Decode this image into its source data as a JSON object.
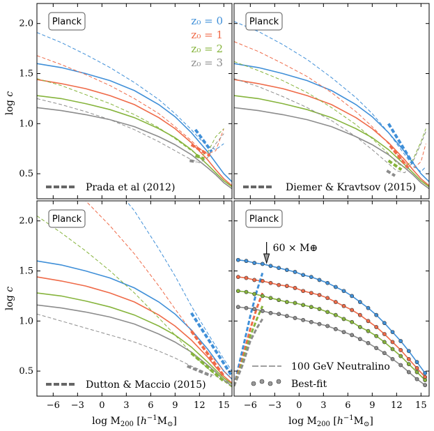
{
  "chart_data": {
    "type": "line",
    "layout": "2x2 panels, shared axes",
    "xlabel": "log M$_{200}$ [$h^{-1}$M$_\\odot$]",
    "ylabel": "log c",
    "xlim": [
      -8,
      16
    ],
    "ylim": [
      0.25,
      2.2
    ],
    "xticks": [
      -6,
      -3,
      0,
      3,
      6,
      9,
      12,
      15
    ],
    "yticks": [
      0.5,
      1.0,
      1.5,
      2.0
    ],
    "colors": {
      "z0": "#3f8fd8",
      "z1": "#ef6a48",
      "z2": "#86b43c",
      "z3": "#8c8c8c"
    },
    "redshift_labels": [
      "z₀ = 0",
      "z₀ = 1",
      "z₀ = 2",
      "z₀ = 3"
    ],
    "solid_curves": {
      "x": [
        -8,
        -5,
        -2,
        1,
        4,
        7,
        9,
        11,
        13,
        14,
        15,
        16
      ],
      "z0": [
        1.6,
        1.56,
        1.5,
        1.43,
        1.33,
        1.19,
        1.07,
        0.91,
        0.72,
        0.61,
        0.5,
        0.42
      ],
      "z1": [
        1.44,
        1.4,
        1.35,
        1.28,
        1.19,
        1.06,
        0.95,
        0.81,
        0.64,
        0.54,
        0.45,
        0.38
      ],
      "z2": [
        1.28,
        1.25,
        1.2,
        1.14,
        1.06,
        0.95,
        0.86,
        0.74,
        0.59,
        0.51,
        0.43,
        0.37
      ],
      "z3": [
        1.16,
        1.13,
        1.09,
        1.04,
        0.97,
        0.87,
        0.79,
        0.69,
        0.56,
        0.49,
        0.41,
        0.35
      ]
    },
    "panels": [
      {
        "box_label": "Planck",
        "legend_label": "Prada et al (2012)",
        "show_redshift_legend": true,
        "dashed": {
          "x": [
            -8,
            -5,
            -2,
            1,
            4,
            7,
            9,
            11,
            12,
            13,
            14,
            15
          ],
          "z0": [
            1.91,
            1.81,
            1.69,
            1.56,
            1.41,
            1.24,
            1.1,
            0.94,
            0.85,
            0.78,
            0.74,
            0.8
          ],
          "z1": [
            1.68,
            1.59,
            1.49,
            1.38,
            1.25,
            1.1,
            0.97,
            0.83,
            0.75,
            0.7,
            0.73,
            0.95
          ],
          "z2": [
            1.45,
            1.38,
            1.29,
            1.2,
            1.09,
            0.96,
            0.85,
            0.73,
            0.68,
            0.71,
            0.87,
            0.95
          ],
          "z3": [
            1.25,
            1.19,
            1.12,
            1.04,
            0.94,
            0.82,
            0.73,
            0.64,
            0.61,
            0.66,
            0.8,
            0.9
          ]
        },
        "thick_dashed": {
          "z0": {
            "x": [
              11.5,
              13.5
            ],
            "y": [
              0.94,
              0.72
            ]
          },
          "z1": {
            "x": [
              11.0,
              13.3
            ],
            "y": [
              0.79,
              0.68
            ]
          },
          "z2": {
            "x": [
              11.5,
              12.6
            ],
            "y": [
              0.68,
              0.65
            ]
          },
          "z3": {
            "x": [
              10.8,
              11.6
            ],
            "y": [
              0.63,
              0.62
            ]
          }
        }
      },
      {
        "box_label": "Planck",
        "legend_label": "Diemer & Kravtsov (2015)",
        "show_redshift_legend": false,
        "dashed": {
          "x": [
            -8,
            -5,
            -2,
            1,
            4,
            7,
            9,
            11,
            12,
            13,
            14,
            15,
            15.6
          ],
          "z0": [
            2.02,
            1.92,
            1.79,
            1.64,
            1.46,
            1.26,
            1.1,
            0.91,
            0.8,
            0.69,
            0.58,
            0.52,
            0.57
          ],
          "z1": [
            1.82,
            1.72,
            1.6,
            1.47,
            1.31,
            1.12,
            0.97,
            0.8,
            0.7,
            0.61,
            0.55,
            0.62,
            0.8
          ],
          "z2": [
            1.62,
            1.53,
            1.43,
            1.31,
            1.16,
            0.99,
            0.85,
            0.7,
            0.61,
            0.56,
            0.64,
            0.82,
            0.95
          ],
          "z3": [
            1.45,
            1.37,
            1.27,
            1.16,
            1.03,
            0.87,
            0.74,
            0.6,
            0.53,
            0.51,
            0.62,
            0.8,
            0.92
          ]
        },
        "thick_dashed": {
          "z0": {
            "x": [
              11.0,
              14.0
            ],
            "y": [
              1.0,
              0.6
            ]
          },
          "z1": {
            "x": [
              11.2,
              13.4
            ],
            "y": [
              0.78,
              0.56
            ]
          },
          "z2": {
            "x": [
              11.0,
              12.6
            ],
            "y": [
              0.63,
              0.54
            ]
          },
          "z3": {
            "x": [
              10.8,
              11.8
            ],
            "y": [
              0.53,
              0.48
            ]
          }
        }
      },
      {
        "box_label": "Planck",
        "legend_label": "Dutton & Maccio (2015)",
        "show_redshift_legend": false,
        "dashed": {
          "x": [
            -8,
            -5,
            -2,
            1,
            4,
            7,
            9,
            11,
            13,
            14,
            15,
            16
          ],
          "z0": [
            3.3,
            3.0,
            2.7,
            2.4,
            2.1,
            1.72,
            1.45,
            1.15,
            0.88,
            0.75,
            0.62,
            0.5
          ],
          "z1": [
            2.7,
            2.45,
            2.2,
            1.95,
            1.67,
            1.35,
            1.12,
            0.9,
            0.69,
            0.6,
            0.5,
            0.42
          ],
          "z2": [
            2.05,
            1.88,
            1.7,
            1.5,
            1.28,
            1.03,
            0.86,
            0.68,
            0.53,
            0.46,
            0.4,
            0.34
          ],
          "z3": [
            1.07,
            1.0,
            0.93,
            0.86,
            0.79,
            0.7,
            0.63,
            0.55,
            0.48,
            0.45,
            0.41,
            0.37
          ]
        },
        "thick_dashed": {
          "z0": {
            "x": [
              11.0,
              16.0
            ],
            "y": [
              1.08,
              0.45
            ]
          },
          "z1": {
            "x": [
              11.0,
              15.0
            ],
            "y": [
              0.9,
              0.45
            ]
          },
          "z2": {
            "x": [
              11.0,
              15.0
            ],
            "y": [
              0.68,
              0.4
            ]
          },
          "z3": {
            "x": [
              10.5,
              13.5
            ],
            "y": [
              0.55,
              0.45
            ]
          }
        }
      },
      {
        "box_label": "Planck",
        "legend_label": "100  GeV Neutralino",
        "legend_label_2": "Best-fit",
        "annotation": "60 × M⊕",
        "annotation_x": -4,
        "show_redshift_legend": false,
        "neutralino": {
          "x": [
            -8.0,
            -7.0,
            -6.0,
            -5.2,
            -4.5
          ],
          "z0": [
            0.35,
            0.7,
            1.05,
            1.3,
            1.48
          ],
          "z1": [
            0.35,
            0.62,
            0.92,
            1.13,
            1.28
          ],
          "z2": [
            0.35,
            0.58,
            0.85,
            1.02,
            1.15
          ],
          "z3": [
            0.35,
            0.55,
            0.8,
            0.93,
            1.02
          ]
        },
        "best_fit_points": {
          "x": [
            -7.5,
            -6.5,
            -5.5,
            -4.5,
            -3.5,
            -2.5,
            -1.5,
            -0.5,
            0.5,
            1.5,
            2.5,
            3.5,
            4.5,
            5.5,
            6.5,
            7.5,
            8.5,
            9.5,
            10.5,
            11.5,
            12.5,
            13.5,
            14.5,
            15.5
          ],
          "z0": [
            1.61,
            1.6,
            1.58,
            1.57,
            1.55,
            1.53,
            1.51,
            1.49,
            1.46,
            1.44,
            1.41,
            1.38,
            1.34,
            1.3,
            1.25,
            1.19,
            1.13,
            1.06,
            0.98,
            0.89,
            0.8,
            0.7,
            0.59,
            0.48
          ],
          "z1": [
            1.44,
            1.43,
            1.41,
            1.4,
            1.38,
            1.36,
            1.35,
            1.33,
            1.3,
            1.28,
            1.26,
            1.23,
            1.19,
            1.15,
            1.11,
            1.06,
            1.0,
            0.94,
            0.87,
            0.79,
            0.71,
            0.62,
            0.53,
            0.44
          ],
          "z2": [
            1.3,
            1.29,
            1.27,
            1.25,
            1.23,
            1.21,
            1.19,
            1.18,
            1.16,
            1.14,
            1.12,
            1.09,
            1.06,
            1.02,
            0.99,
            0.94,
            0.9,
            0.85,
            0.79,
            0.72,
            0.65,
            0.57,
            0.49,
            0.41
          ],
          "z3": [
            1.14,
            1.13,
            1.12,
            1.1,
            1.08,
            1.07,
            1.05,
            1.03,
            1.01,
            0.99,
            0.97,
            0.95,
            0.92,
            0.89,
            0.86,
            0.82,
            0.78,
            0.73,
            0.68,
            0.62,
            0.56,
            0.49,
            0.42,
            0.36
          ]
        }
      }
    ]
  }
}
